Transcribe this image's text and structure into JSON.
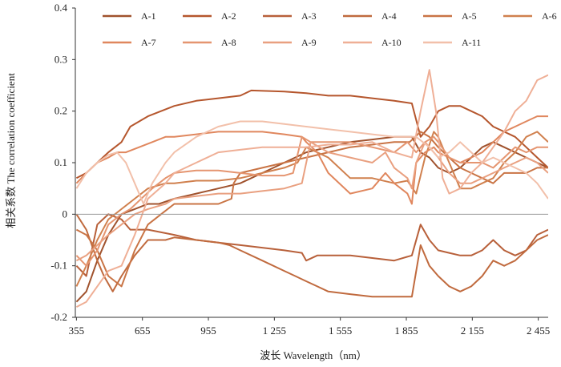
{
  "chart_data": {
    "type": "line",
    "xlabel": "波长 Wavelength（nm）",
    "ylabel": "相关系数 The correlation coefficient",
    "xlim": [
      350,
      2500
    ],
    "ylim": [
      -0.2,
      0.4
    ],
    "xticks": [
      355,
      655,
      955,
      1255,
      1555,
      1855,
      2155,
      2455
    ],
    "xtick_labels": [
      "355",
      "655",
      "955",
      "1 255",
      "1 555",
      "1 855",
      "2 155",
      "2 455"
    ],
    "yticks": [
      -0.2,
      -0.1,
      0,
      0.1,
      0.2,
      0.3,
      0.4
    ],
    "ytick_labels": [
      "-0.2",
      "-0.1",
      "0",
      "0.1",
      "0.2",
      "0.3",
      "0.4"
    ],
    "zero_line": true,
    "grid": false,
    "legend_position": "top",
    "series": [
      {
        "name": "A-1",
        "color": "#A0522D",
        "x": [
          355,
          400,
          450,
          500,
          560,
          620,
          680,
          730,
          800,
          900,
          1000,
          1100,
          1200,
          1300,
          1400,
          1500,
          1600,
          1700,
          1800,
          1880,
          1920,
          1960,
          2000,
          2050,
          2100,
          2150,
          2200,
          2250,
          2300,
          2350,
          2400,
          2450,
          2500
        ],
        "y": [
          -0.17,
          -0.15,
          -0.09,
          -0.04,
          0.0,
          0.01,
          0.02,
          0.02,
          0.03,
          0.04,
          0.05,
          0.06,
          0.08,
          0.1,
          0.12,
          0.13,
          0.14,
          0.145,
          0.15,
          0.15,
          0.12,
          0.11,
          0.09,
          0.08,
          0.09,
          0.11,
          0.13,
          0.14,
          0.13,
          0.12,
          0.11,
          0.1,
          0.09
        ]
      },
      {
        "name": "A-2",
        "color": "#B5562D",
        "x": [
          355,
          400,
          450,
          500,
          560,
          600,
          680,
          800,
          900,
          1000,
          1100,
          1150,
          1300,
          1400,
          1500,
          1600,
          1700,
          1800,
          1880,
          1920,
          1960,
          2000,
          2050,
          2100,
          2150,
          2200,
          2250,
          2300,
          2350,
          2400,
          2450,
          2500
        ],
        "y": [
          0.07,
          0.08,
          0.1,
          0.12,
          0.14,
          0.17,
          0.19,
          0.21,
          0.22,
          0.225,
          0.23,
          0.24,
          0.238,
          0.235,
          0.23,
          0.23,
          0.225,
          0.22,
          0.215,
          0.15,
          0.17,
          0.2,
          0.21,
          0.21,
          0.2,
          0.19,
          0.17,
          0.16,
          0.15,
          0.13,
          0.11,
          0.09
        ]
      },
      {
        "name": "A-3",
        "color": "#B8603A",
        "x": [
          355,
          400,
          450,
          500,
          560,
          600,
          680,
          800,
          900,
          1000,
          1100,
          1200,
          1300,
          1380,
          1400,
          1450,
          1500,
          1600,
          1700,
          1800,
          1880,
          1920,
          1960,
          2000,
          2050,
          2100,
          2150,
          2200,
          2250,
          2300,
          2350,
          2400,
          2450,
          2500
        ],
        "y": [
          -0.1,
          -0.12,
          -0.02,
          0.0,
          -0.01,
          -0.03,
          -0.03,
          -0.04,
          -0.05,
          -0.055,
          -0.06,
          -0.065,
          -0.07,
          -0.075,
          -0.09,
          -0.08,
          -0.08,
          -0.08,
          -0.085,
          -0.09,
          -0.08,
          -0.02,
          -0.05,
          -0.07,
          -0.075,
          -0.08,
          -0.08,
          -0.07,
          -0.05,
          -0.07,
          -0.08,
          -0.07,
          -0.04,
          -0.03
        ]
      },
      {
        "name": "A-4",
        "color": "#C06A3E",
        "x": [
          355,
          400,
          450,
          480,
          520,
          560,
          620,
          680,
          760,
          800,
          900,
          1000,
          1050,
          1100,
          1200,
          1300,
          1350,
          1400,
          1450,
          1500,
          1600,
          1700,
          1800,
          1880,
          1920,
          1960,
          2000,
          2050,
          2100,
          2150,
          2200,
          2250,
          2300,
          2350,
          2400,
          2450,
          2500
        ],
        "y": [
          0.0,
          -0.03,
          -0.09,
          -0.12,
          -0.15,
          -0.12,
          -0.08,
          -0.05,
          -0.05,
          -0.045,
          -0.05,
          -0.055,
          -0.06,
          -0.07,
          -0.09,
          -0.11,
          -0.12,
          -0.13,
          -0.14,
          -0.15,
          -0.155,
          -0.16,
          -0.16,
          -0.16,
          -0.06,
          -0.1,
          -0.12,
          -0.14,
          -0.15,
          -0.14,
          -0.12,
          -0.09,
          -0.1,
          -0.09,
          -0.07,
          -0.05,
          -0.04
        ]
      },
      {
        "name": "A-5",
        "color": "#C97445",
        "x": [
          355,
          400,
          450,
          500,
          560,
          620,
          680,
          740,
          800,
          900,
          1000,
          1060,
          1070,
          1100,
          1200,
          1300,
          1400,
          1450,
          1500,
          1600,
          1700,
          1800,
          1870,
          1920,
          1960,
          2000,
          2050,
          2100,
          2150,
          2200,
          2250,
          2300,
          2350,
          2400,
          2450,
          2500
        ],
        "y": [
          -0.03,
          -0.04,
          -0.07,
          -0.12,
          -0.14,
          -0.07,
          -0.02,
          0.0,
          0.02,
          0.02,
          0.02,
          0.03,
          0.06,
          0.08,
          0.09,
          0.1,
          0.11,
          0.115,
          0.12,
          0.13,
          0.135,
          0.14,
          0.14,
          0.16,
          0.15,
          0.13,
          0.11,
          0.09,
          0.08,
          0.07,
          0.06,
          0.08,
          0.08,
          0.08,
          0.09,
          0.09
        ]
      },
      {
        "name": "A-6",
        "color": "#D0804E",
        "x": [
          355,
          400,
          450,
          500,
          560,
          620,
          680,
          760,
          800,
          900,
          1000,
          1100,
          1200,
          1300,
          1360,
          1400,
          1450,
          1500,
          1600,
          1700,
          1800,
          1860,
          1900,
          1940,
          1980,
          2000,
          2050,
          2100,
          2150,
          2200,
          2250,
          2300,
          2350,
          2400,
          2450,
          2500
        ],
        "y": [
          -0.14,
          -0.1,
          -0.05,
          -0.01,
          0.01,
          0.03,
          0.05,
          0.06,
          0.06,
          0.065,
          0.065,
          0.07,
          0.08,
          0.09,
          0.1,
          0.13,
          0.12,
          0.11,
          0.07,
          0.07,
          0.06,
          0.065,
          0.04,
          0.11,
          0.16,
          0.15,
          0.1,
          0.05,
          0.05,
          0.06,
          0.07,
          0.1,
          0.12,
          0.15,
          0.16,
          0.14
        ]
      },
      {
        "name": "A-7",
        "color": "#E0875E",
        "x": [
          355,
          400,
          450,
          500,
          540,
          580,
          640,
          700,
          760,
          800,
          900,
          1000,
          1100,
          1200,
          1300,
          1380,
          1400,
          1450,
          1500,
          1600,
          1700,
          1760,
          1800,
          1860,
          1880,
          1900,
          1940,
          1980,
          2000,
          2050,
          2100,
          2150,
          2200,
          2250,
          2300,
          2350,
          2400,
          2450,
          2500
        ],
        "y": [
          0.06,
          0.08,
          0.1,
          0.11,
          0.12,
          0.12,
          0.13,
          0.14,
          0.15,
          0.15,
          0.155,
          0.16,
          0.16,
          0.16,
          0.155,
          0.15,
          0.14,
          0.12,
          0.08,
          0.04,
          0.05,
          0.08,
          0.06,
          0.04,
          0.02,
          0.1,
          0.12,
          0.13,
          0.12,
          0.11,
          0.1,
          0.11,
          0.12,
          0.14,
          0.16,
          0.17,
          0.18,
          0.19,
          0.19
        ]
      },
      {
        "name": "A-8",
        "color": "#E59570",
        "x": [
          355,
          400,
          450,
          500,
          560,
          600,
          650,
          700,
          760,
          800,
          900,
          1000,
          1100,
          1200,
          1300,
          1340,
          1380,
          1420,
          1500,
          1600,
          1700,
          1800,
          1860,
          1900,
          1940,
          1980,
          2000,
          2050,
          2100,
          2150,
          2200,
          2250,
          2300,
          2350,
          2400,
          2450,
          2500
        ],
        "y": [
          -0.08,
          -0.1,
          -0.07,
          -0.02,
          0.0,
          0.01,
          0.03,
          0.05,
          0.07,
          0.08,
          0.085,
          0.085,
          0.08,
          0.075,
          0.075,
          0.08,
          0.15,
          0.14,
          0.14,
          0.14,
          0.13,
          0.12,
          0.14,
          0.12,
          0.14,
          0.15,
          0.14,
          0.11,
          0.1,
          0.1,
          0.1,
          0.09,
          0.11,
          0.13,
          0.12,
          0.13,
          0.13
        ]
      },
      {
        "name": "A-9",
        "color": "#E9A080",
        "x": [
          355,
          400,
          450,
          500,
          560,
          620,
          680,
          760,
          800,
          900,
          1000,
          1100,
          1200,
          1300,
          1380,
          1420,
          1500,
          1600,
          1700,
          1760,
          1800,
          1860,
          1880,
          1900,
          1940,
          1960,
          2000,
          2050,
          2100,
          2150,
          2200,
          2250,
          2300,
          2350,
          2400,
          2450,
          2500
        ],
        "y": [
          -0.09,
          -0.08,
          -0.06,
          -0.04,
          -0.02,
          0.0,
          0.01,
          0.02,
          0.03,
          0.035,
          0.04,
          0.04,
          0.045,
          0.05,
          0.06,
          0.14,
          0.12,
          0.11,
          0.1,
          0.12,
          0.09,
          0.07,
          0.05,
          0.1,
          0.14,
          0.13,
          0.11,
          0.08,
          0.06,
          0.06,
          0.07,
          0.08,
          0.09,
          0.1,
          0.11,
          0.1,
          0.08
        ]
      },
      {
        "name": "A-10",
        "color": "#EFAF96",
        "x": [
          355,
          400,
          450,
          500,
          560,
          620,
          680,
          760,
          800,
          900,
          1000,
          1100,
          1200,
          1300,
          1400,
          1500,
          1600,
          1700,
          1800,
          1880,
          1920,
          1960,
          1990,
          2020,
          2050,
          2100,
          2150,
          2200,
          2250,
          2300,
          2350,
          2400,
          2450,
          2500
        ],
        "y": [
          -0.18,
          -0.17,
          -0.14,
          -0.11,
          -0.1,
          -0.04,
          0.03,
          0.06,
          0.08,
          0.1,
          0.12,
          0.125,
          0.13,
          0.13,
          0.13,
          0.135,
          0.135,
          0.14,
          0.12,
          0.11,
          0.2,
          0.28,
          0.2,
          0.07,
          0.04,
          0.05,
          0.08,
          0.1,
          0.13,
          0.16,
          0.2,
          0.22,
          0.26,
          0.27
        ]
      },
      {
        "name": "A-11",
        "color": "#F2C0AA",
        "x": [
          355,
          400,
          450,
          500,
          540,
          580,
          620,
          660,
          700,
          760,
          800,
          900,
          1000,
          1100,
          1200,
          1300,
          1400,
          1500,
          1600,
          1700,
          1800,
          1860,
          1900,
          1960,
          2000,
          2050,
          2100,
          2150,
          2200,
          2250,
          2300,
          2350,
          2400,
          2450,
          2500
        ],
        "y": [
          0.05,
          0.08,
          0.1,
          0.115,
          0.12,
          0.1,
          0.06,
          0.02,
          0.06,
          0.1,
          0.12,
          0.15,
          0.17,
          0.18,
          0.18,
          0.175,
          0.17,
          0.165,
          0.16,
          0.155,
          0.15,
          0.15,
          0.15,
          0.13,
          0.11,
          0.12,
          0.14,
          0.12,
          0.1,
          0.11,
          0.1,
          0.09,
          0.08,
          0.06,
          0.03
        ]
      }
    ]
  }
}
